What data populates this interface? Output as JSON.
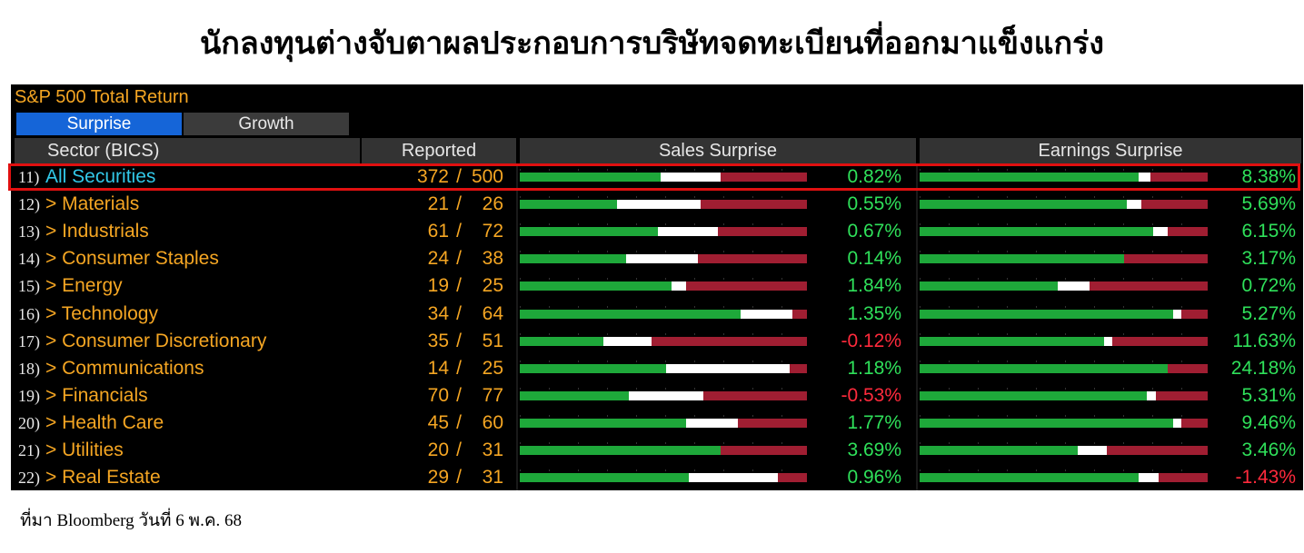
{
  "page_title": "นักลงทุนต่างจับตาผลประกอบการบริษัทจดทะเบียนที่ออกมาแข็งแกร่ง",
  "terminal": {
    "header": "S&P 500 Total Return",
    "tabs": [
      {
        "label": "Surprise",
        "active": true
      },
      {
        "label": "Growth",
        "active": false
      }
    ],
    "columns": {
      "sector": "Sector (BICS)",
      "reported": "Reported",
      "sales": "Sales Surprise",
      "earnings": "Earnings Surprise"
    },
    "colors": {
      "positive": "#2fe05a",
      "negative": "#ff2a3c",
      "label": "#f5a623",
      "highlight_label": "#32c8e8"
    },
    "rows": [
      {
        "num": "11)",
        "label": "All Securities",
        "reported": "372",
        "total": "500",
        "sales": "0.82%",
        "earnings": "8.38%",
        "sales_bar": [
          0.49,
          0.21
        ],
        "earn_bar": [
          0.76,
          0.04
        ]
      },
      {
        "num": "12)",
        "label": "> Materials",
        "reported": "21",
        "total": "26",
        "sales": "0.55%",
        "earnings": "5.69%",
        "sales_bar": [
          0.34,
          0.29
        ],
        "earn_bar": [
          0.72,
          0.05
        ]
      },
      {
        "num": "13)",
        "label": "> Industrials",
        "reported": "61",
        "total": "72",
        "sales": "0.67%",
        "earnings": "6.15%",
        "sales_bar": [
          0.48,
          0.21
        ],
        "earn_bar": [
          0.81,
          0.05
        ]
      },
      {
        "num": "14)",
        "label": "> Consumer Staples",
        "reported": "24",
        "total": "38",
        "sales": "0.14%",
        "earnings": "3.17%",
        "sales_bar": [
          0.37,
          0.25
        ],
        "earn_bar": [
          0.71,
          0.0
        ]
      },
      {
        "num": "15)",
        "label": "> Energy",
        "reported": "19",
        "total": "25",
        "sales": "1.84%",
        "earnings": "0.72%",
        "sales_bar": [
          0.53,
          0.05
        ],
        "earn_bar": [
          0.48,
          0.11
        ]
      },
      {
        "num": "16)",
        "label": "> Technology",
        "reported": "34",
        "total": "64",
        "sales": "1.35%",
        "earnings": "5.27%",
        "sales_bar": [
          0.77,
          0.18
        ],
        "earn_bar": [
          0.88,
          0.03
        ]
      },
      {
        "num": "17)",
        "label": "> Consumer Discretionary",
        "reported": "35",
        "total": "51",
        "sales": "-0.12%",
        "earnings": "11.63%",
        "sales_bar": [
          0.29,
          0.17
        ],
        "earn_bar": [
          0.64,
          0.03
        ]
      },
      {
        "num": "18)",
        "label": "> Communications",
        "reported": "14",
        "total": "25",
        "sales": "1.18%",
        "earnings": "24.18%",
        "sales_bar": [
          0.51,
          0.43
        ],
        "earn_bar": [
          0.86,
          0.0
        ]
      },
      {
        "num": "19)",
        "label": "> Financials",
        "reported": "70",
        "total": "77",
        "sales": "-0.53%",
        "earnings": "5.31%",
        "sales_bar": [
          0.38,
          0.26
        ],
        "earn_bar": [
          0.79,
          0.03
        ]
      },
      {
        "num": "20)",
        "label": "> Health Care",
        "reported": "45",
        "total": "60",
        "sales": "1.77%",
        "earnings": "9.46%",
        "sales_bar": [
          0.58,
          0.18
        ],
        "earn_bar": [
          0.88,
          0.03
        ]
      },
      {
        "num": "21)",
        "label": "> Utilities",
        "reported": "20",
        "total": "31",
        "sales": "3.69%",
        "earnings": "3.46%",
        "sales_bar": [
          0.7,
          0.0
        ],
        "earn_bar": [
          0.55,
          0.1
        ]
      },
      {
        "num": "22)",
        "label": "> Real Estate",
        "reported": "29",
        "total": "31",
        "sales": "0.96%",
        "earnings": "-1.43%",
        "sales_bar": [
          0.59,
          0.31
        ],
        "earn_bar": [
          0.76,
          0.07
        ]
      }
    ]
  },
  "source": "ที่มา Bloomberg วันที่ 6 พ.ค. 68"
}
